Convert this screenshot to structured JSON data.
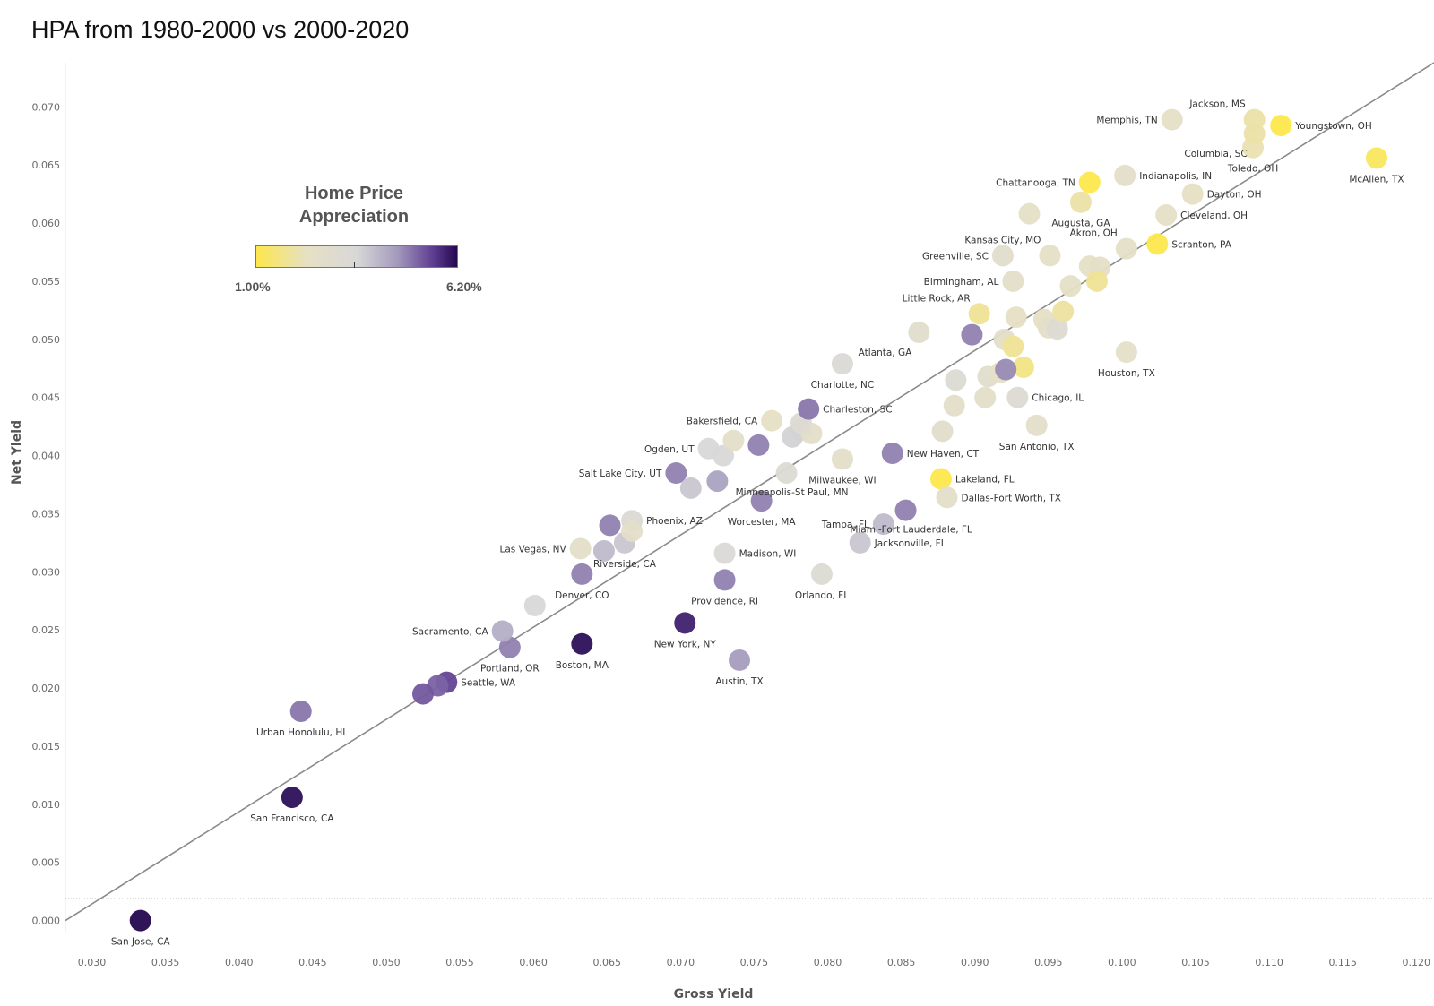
{
  "chart_data": {
    "type": "scatter",
    "title": "HPA from 1980-2000 vs 2000-2020",
    "xlabel": "Gross Yield",
    "ylabel": "Net Yield",
    "xlim": [
      0.0282,
      0.1212
    ],
    "ylim": [
      -0.0045,
      0.0738
    ],
    "x_ticks": [
      "0.030",
      "0.035",
      "0.040",
      "0.045",
      "0.050",
      "0.055",
      "0.060",
      "0.065",
      "0.070",
      "0.075",
      "0.080",
      "0.085",
      "0.090",
      "0.095",
      "0.100",
      "0.105",
      "0.110",
      "0.115",
      "0.120"
    ],
    "y_ticks": [
      "0.000",
      "0.005",
      "0.010",
      "0.015",
      "0.020",
      "0.025",
      "0.030",
      "0.035",
      "0.040",
      "0.045",
      "0.050",
      "0.055",
      "0.060",
      "0.065",
      "0.070"
    ],
    "grid": false,
    "trend_line": {
      "x": [
        0.0282,
        0.1212
      ],
      "y": [
        0.0,
        0.0738
      ]
    },
    "legend": {
      "title_line1": "Home Price",
      "title_line2": "Appreciation",
      "min_label": "1.00%",
      "max_label": "6.20%",
      "min": 1.0,
      "max": 6.2,
      "colors": [
        "#fde74c",
        "#e6e0c4",
        "#d8d8d8",
        "#a49bbd",
        "#5e3c91",
        "#24084f"
      ],
      "placement": "upper-left"
    },
    "points": [
      {
        "label": "San Jose, CA",
        "x": 0.0333,
        "y": 0.0,
        "hpa": 6.2,
        "pos": "below"
      },
      {
        "label": "San Francisco, CA",
        "x": 0.0436,
        "y": 0.0106,
        "hpa": 6.1,
        "pos": "below"
      },
      {
        "label": "Urban Honolulu, HI",
        "x": 0.0442,
        "y": 0.018,
        "hpa": 5.0,
        "pos": "below"
      },
      {
        "label": "Seattle, WA",
        "x": 0.0541,
        "y": 0.0205,
        "hpa": 5.5,
        "pos": "right"
      },
      {
        "label": "",
        "x": 0.0535,
        "y": 0.0202,
        "hpa": 5.2
      },
      {
        "label": "",
        "x": 0.0525,
        "y": 0.0195,
        "hpa": 5.3
      },
      {
        "label": "Portland, OR",
        "x": 0.0584,
        "y": 0.0235,
        "hpa": 4.9,
        "pos": "below"
      },
      {
        "label": "Sacramento, CA",
        "x": 0.0579,
        "y": 0.0249,
        "hpa": 4.3,
        "pos": "left"
      },
      {
        "label": "Boston, MA",
        "x": 0.0633,
        "y": 0.0238,
        "hpa": 6.1,
        "pos": "below"
      },
      {
        "label": "New York, NY",
        "x": 0.0703,
        "y": 0.0256,
        "hpa": 5.9,
        "pos": "below"
      },
      {
        "label": "Austin, TX",
        "x": 0.074,
        "y": 0.0224,
        "hpa": 4.6,
        "pos": "below"
      },
      {
        "label": "Providence, RI",
        "x": 0.073,
        "y": 0.0293,
        "hpa": 4.9,
        "pos": "below"
      },
      {
        "label": "Madison, WI",
        "x": 0.073,
        "y": 0.0316,
        "hpa": 3.4,
        "pos": "right"
      },
      {
        "label": "Orlando, FL",
        "x": 0.0796,
        "y": 0.0298,
        "hpa": 3.3,
        "pos": "below"
      },
      {
        "label": "",
        "x": 0.0601,
        "y": 0.0271,
        "hpa": 3.6
      },
      {
        "label": "Denver, CO",
        "x": 0.0633,
        "y": 0.0298,
        "hpa": 4.9,
        "pos": "below"
      },
      {
        "label": "Riverside, CA",
        "x": 0.0662,
        "y": 0.0325,
        "hpa": 3.9,
        "pos": "below"
      },
      {
        "label": "",
        "x": 0.0648,
        "y": 0.0318,
        "hpa": 4.1
      },
      {
        "label": "Las Vegas, NV",
        "x": 0.0632,
        "y": 0.032,
        "hpa": 2.6,
        "pos": "left"
      },
      {
        "label": "Phoenix, AZ",
        "x": 0.0667,
        "y": 0.0344,
        "hpa": 3.4,
        "pos": "right"
      },
      {
        "label": "",
        "x": 0.0667,
        "y": 0.0335,
        "hpa": 2.6
      },
      {
        "label": "",
        "x": 0.0652,
        "y": 0.034,
        "hpa": 4.9
      },
      {
        "label": "Salt Lake City, UT",
        "x": 0.0697,
        "y": 0.0385,
        "hpa": 4.9,
        "pos": "left"
      },
      {
        "label": "",
        "x": 0.0707,
        "y": 0.0372,
        "hpa": 3.9
      },
      {
        "label": "",
        "x": 0.0725,
        "y": 0.0378,
        "hpa": 4.5
      },
      {
        "label": "Ogden, UT",
        "x": 0.0719,
        "y": 0.0406,
        "hpa": 3.6,
        "pos": "left"
      },
      {
        "label": "",
        "x": 0.0729,
        "y": 0.04,
        "hpa": 3.6
      },
      {
        "label": "",
        "x": 0.0736,
        "y": 0.0413,
        "hpa": 2.6
      },
      {
        "label": "",
        "x": 0.0753,
        "y": 0.0409,
        "hpa": 4.9
      },
      {
        "label": "Worcester, MA",
        "x": 0.0755,
        "y": 0.0361,
        "hpa": 4.9,
        "pos": "below"
      },
      {
        "label": "Minneapolis-St Paul, MN",
        "x": 0.0772,
        "y": 0.0385,
        "hpa": 3.3,
        "pos": "below-right"
      },
      {
        "label": "Bakersfield, CA",
        "x": 0.0762,
        "y": 0.043,
        "hpa": 2.3,
        "pos": "left"
      },
      {
        "label": "",
        "x": 0.0776,
        "y": 0.0416,
        "hpa": 3.7
      },
      {
        "label": "",
        "x": 0.0782,
        "y": 0.0422,
        "hpa": 3.7
      },
      {
        "label": "",
        "x": 0.0789,
        "y": 0.0419,
        "hpa": 2.6
      },
      {
        "label": "",
        "x": 0.0782,
        "y": 0.0428,
        "hpa": 3.2
      },
      {
        "label": "Charleston, SC",
        "x": 0.0787,
        "y": 0.044,
        "hpa": 5.0,
        "pos": "right"
      },
      {
        "label": "Milwaukee, WI",
        "x": 0.081,
        "y": 0.0397,
        "hpa": 2.6,
        "pos": "below"
      },
      {
        "label": "Charlotte, NC",
        "x": 0.081,
        "y": 0.0479,
        "hpa": 3.4,
        "pos": "below"
      },
      {
        "label": "New Haven, CT",
        "x": 0.0844,
        "y": 0.0402,
        "hpa": 4.9,
        "pos": "right"
      },
      {
        "label": "Tampa, FL",
        "x": 0.0838,
        "y": 0.0341,
        "hpa": 4.1,
        "pos": "left"
      },
      {
        "label": "Miami-Fort Lauderdale, FL",
        "x": 0.0853,
        "y": 0.0353,
        "hpa": 4.9,
        "pos": "below-right"
      },
      {
        "label": "Jacksonville, FL",
        "x": 0.0822,
        "y": 0.0325,
        "hpa": 3.9,
        "pos": "right"
      },
      {
        "label": "Lakeland, FL",
        "x": 0.0877,
        "y": 0.038,
        "hpa": 1.0,
        "pos": "right"
      },
      {
        "label": "Dallas-Fort Worth, TX",
        "x": 0.0881,
        "y": 0.0364,
        "hpa": 2.6,
        "pos": "right"
      },
      {
        "label": "",
        "x": 0.0878,
        "y": 0.0421,
        "hpa": 2.8
      },
      {
        "label": "",
        "x": 0.0886,
        "y": 0.0443,
        "hpa": 2.6
      },
      {
        "label": "",
        "x": 0.0887,
        "y": 0.0465,
        "hpa": 3.3
      },
      {
        "label": "",
        "x": 0.0907,
        "y": 0.045,
        "hpa": 2.6
      },
      {
        "label": "",
        "x": 0.0909,
        "y": 0.0468,
        "hpa": 2.8
      },
      {
        "label": "",
        "x": 0.0918,
        "y": 0.0472,
        "hpa": 2.4
      },
      {
        "label": "",
        "x": 0.0933,
        "y": 0.0476,
        "hpa": 1.6
      },
      {
        "label": "",
        "x": 0.0921,
        "y": 0.0474,
        "hpa": 4.8
      },
      {
        "label": "Chicago, IL",
        "x": 0.0929,
        "y": 0.045,
        "hpa": 3.2,
        "pos": "right"
      },
      {
        "label": "San Antonio, TX",
        "x": 0.0942,
        "y": 0.0426,
        "hpa": 2.6,
        "pos": "below"
      },
      {
        "label": "Atlanta, GA",
        "x": 0.0862,
        "y": 0.0506,
        "hpa": 2.8,
        "pos": "below-left"
      },
      {
        "label": "",
        "x": 0.0898,
        "y": 0.0504,
        "hpa": 4.9
      },
      {
        "label": "Little Rock, AR",
        "x": 0.0903,
        "y": 0.0522,
        "hpa": 1.8,
        "pos": "above-left"
      },
      {
        "label": "",
        "x": 0.092,
        "y": 0.05,
        "hpa": 2.6
      },
      {
        "label": "",
        "x": 0.0926,
        "y": 0.0494,
        "hpa": 1.8
      },
      {
        "label": "",
        "x": 0.0928,
        "y": 0.0519,
        "hpa": 2.3
      },
      {
        "label": "",
        "x": 0.0947,
        "y": 0.0517,
        "hpa": 2.3
      },
      {
        "label": "",
        "x": 0.095,
        "y": 0.051,
        "hpa": 2.6
      },
      {
        "label": "",
        "x": 0.0956,
        "y": 0.0509,
        "hpa": 3.2
      },
      {
        "label": "",
        "x": 0.096,
        "y": 0.0524,
        "hpa": 1.9
      },
      {
        "label": "Houston, TX",
        "x": 0.1003,
        "y": 0.0489,
        "hpa": 2.5,
        "pos": "below"
      },
      {
        "label": "Birmingham, AL",
        "x": 0.0926,
        "y": 0.055,
        "hpa": 2.6,
        "pos": "left"
      },
      {
        "label": "",
        "x": 0.0965,
        "y": 0.0546,
        "hpa": 2.4
      },
      {
        "label": "",
        "x": 0.0978,
        "y": 0.0563,
        "hpa": 2.4
      },
      {
        "label": "",
        "x": 0.0985,
        "y": 0.0562,
        "hpa": 2.5
      },
      {
        "label": "",
        "x": 0.0983,
        "y": 0.055,
        "hpa": 1.8
      },
      {
        "label": "Greenville, SC",
        "x": 0.0919,
        "y": 0.0572,
        "hpa": 2.8,
        "pos": "left"
      },
      {
        "label": "Kansas City, MO",
        "x": 0.0951,
        "y": 0.0572,
        "hpa": 2.4,
        "pos": "above-left"
      },
      {
        "label": "Akron, OH",
        "x": 0.1003,
        "y": 0.0578,
        "hpa": 2.5,
        "pos": "above-left"
      },
      {
        "label": "Scranton, PA",
        "x": 0.1024,
        "y": 0.0582,
        "hpa": 1.0,
        "pos": "right"
      },
      {
        "label": "",
        "x": 0.0937,
        "y": 0.0608,
        "hpa": 2.4
      },
      {
        "label": "Augusta, GA",
        "x": 0.0972,
        "y": 0.0618,
        "hpa": 2.0,
        "pos": "below"
      },
      {
        "label": "Cleveland, OH",
        "x": 0.103,
        "y": 0.0607,
        "hpa": 2.4,
        "pos": "right"
      },
      {
        "label": "Dayton, OH",
        "x": 0.1048,
        "y": 0.0625,
        "hpa": 2.3,
        "pos": "right"
      },
      {
        "label": "Chattanooga, TN",
        "x": 0.0978,
        "y": 0.0635,
        "hpa": 1.0,
        "pos": "left"
      },
      {
        "label": "Indianapolis, IN",
        "x": 0.1002,
        "y": 0.0641,
        "hpa": 2.6,
        "pos": "right"
      },
      {
        "label": "Toledo, OH",
        "x": 0.1089,
        "y": 0.0665,
        "hpa": 2.1,
        "pos": "below"
      },
      {
        "label": "Columbia, SC",
        "x": 0.109,
        "y": 0.0677,
        "hpa": 2.0,
        "pos": "below-left"
      },
      {
        "label": "Memphis, TN",
        "x": 0.1034,
        "y": 0.0689,
        "hpa": 2.4,
        "pos": "left"
      },
      {
        "label": "Jackson, MS",
        "x": 0.109,
        "y": 0.0689,
        "hpa": 2.0,
        "pos": "above-left"
      },
      {
        "label": "Youngstown, OH",
        "x": 0.1108,
        "y": 0.0684,
        "hpa": 1.0,
        "pos": "right"
      },
      {
        "label": "McAllen, TX",
        "x": 0.1173,
        "y": 0.0656,
        "hpa": 1.2,
        "pos": "below"
      }
    ]
  }
}
